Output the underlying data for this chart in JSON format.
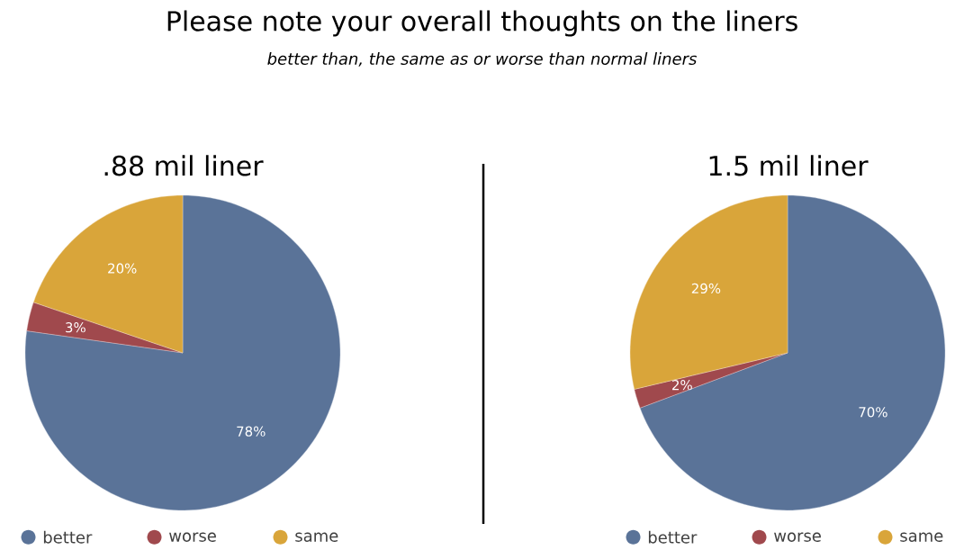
{
  "chart_data": [
    {
      "type": "other",
      "title": "Please note your overall thoughts on the liners",
      "subtitle": "better than, the same as or worse than normal liners"
    },
    {
      "type": "pie",
      "title": ".88 mil liner",
      "categories": [
        "better",
        "worse",
        "same"
      ],
      "values": [
        78,
        3,
        20
      ],
      "value_labels": [
        "78%",
        "3%",
        "20%"
      ],
      "colors": [
        "#5a7398",
        "#a0494d",
        "#d9a53a"
      ],
      "legend": "bottom"
    },
    {
      "type": "pie",
      "title": "1.5 mil liner",
      "categories": [
        "better",
        "worse",
        "same"
      ],
      "values": [
        70,
        2,
        29
      ],
      "value_labels": [
        "70%",
        "2%",
        "29%"
      ],
      "colors": [
        "#5a7398",
        "#a0494d",
        "#d9a53a"
      ],
      "legend": "bottom"
    }
  ]
}
